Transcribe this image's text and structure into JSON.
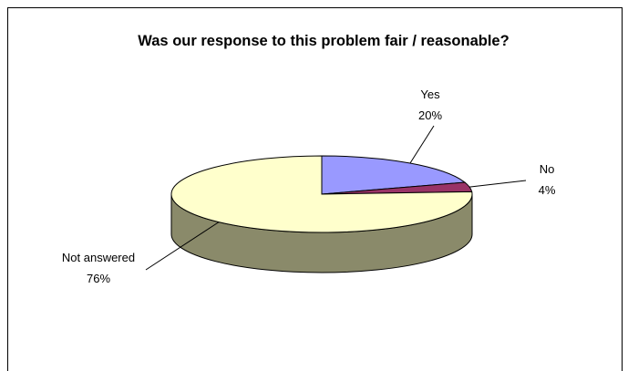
{
  "chart_data": {
    "type": "pie",
    "title": "Was our response to this problem fair / reasonable?",
    "categories": [
      "Yes",
      "No",
      "Not answered"
    ],
    "values": [
      20,
      4,
      76
    ],
    "value_labels": [
      "20%",
      "4%",
      "76%"
    ],
    "colors": {
      "Yes": "#9999ff",
      "No": "#993366",
      "Not answered": "#ffffcc",
      "side": "#8a8a6a"
    },
    "three_d": true,
    "legend": "none"
  }
}
